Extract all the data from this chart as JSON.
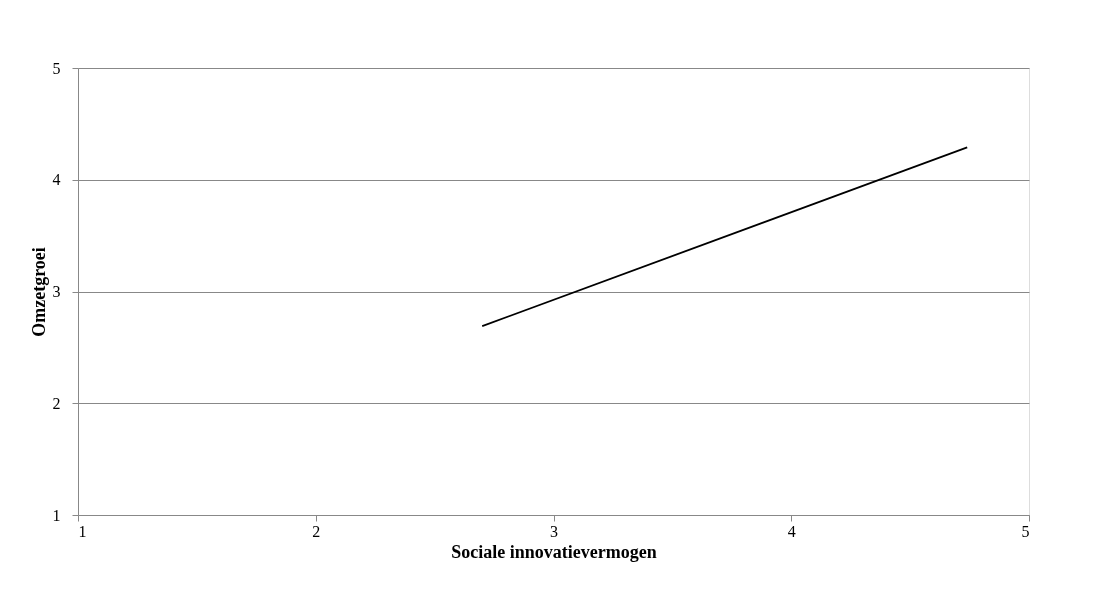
{
  "chart_data": {
    "type": "line",
    "xlabel": "Sociale innovatievermogen",
    "ylabel": "Omzetgroei",
    "x": [
      2.7,
      4.74
    ],
    "series": [
      {
        "color": "#000000",
        "values": [
          2.69,
          4.29
        ]
      }
    ],
    "xlim": [
      1,
      5
    ],
    "xticks": [
      1,
      2,
      3,
      4,
      5
    ],
    "ylim": [
      1,
      5
    ],
    "yticks": [
      1,
      2,
      3,
      4,
      5
    ],
    "grid": "y",
    "marker": "none",
    "line_style": "solid"
  }
}
